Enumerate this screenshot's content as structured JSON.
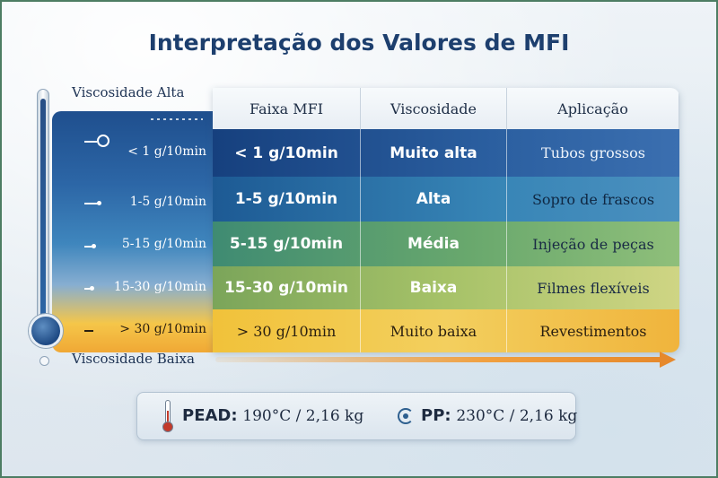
{
  "title": "Interpretação dos Valores de MFI",
  "scale": {
    "top_label": "Viscosidade Alta",
    "bottom_label": "Viscosidade Baixa",
    "levels": [
      "< 1 g/10min",
      "1-5 g/10min",
      "5-15 g/10min",
      "15-30 g/10min",
      "> 30 g/10min"
    ]
  },
  "table": {
    "headers": [
      "Faixa MFI",
      "Viscosidade",
      "Aplicação"
    ],
    "rows": [
      {
        "faixa": "< 1 g/10min",
        "viscosidade": "Muito alta",
        "aplicacao": "Tubos grossos"
      },
      {
        "faixa": "1-5 g/10min",
        "viscosidade": "Alta",
        "aplicacao": "Sopro de frascos"
      },
      {
        "faixa": "5-15 g/10min",
        "viscosidade": "Média",
        "aplicacao": "Injeção de peças"
      },
      {
        "faixa": "15-30 g/10min",
        "viscosidade": "Baixa",
        "aplicacao": "Filmes flexíveis"
      },
      {
        "faixa": "> 30 g/10min",
        "viscosidade": "Muito baixa",
        "aplicacao": "Revestimentos"
      }
    ]
  },
  "footer": {
    "pead_label": "PEAD:",
    "pead_value": "190°C / 2,16 kg",
    "pp_label": "PP:",
    "pp_value": "230°C / 2,16 kg",
    "pead_icon": "thermometer-icon",
    "pp_icon": "rotation-icon"
  },
  "colors": {
    "title": "#1d3f6e",
    "very_high": "#16407e",
    "high": "#1d5a94",
    "medium": "#3f8b72",
    "low": "#7ba55a",
    "very_low": "#f1c23a",
    "arrow": "#e6892c"
  }
}
